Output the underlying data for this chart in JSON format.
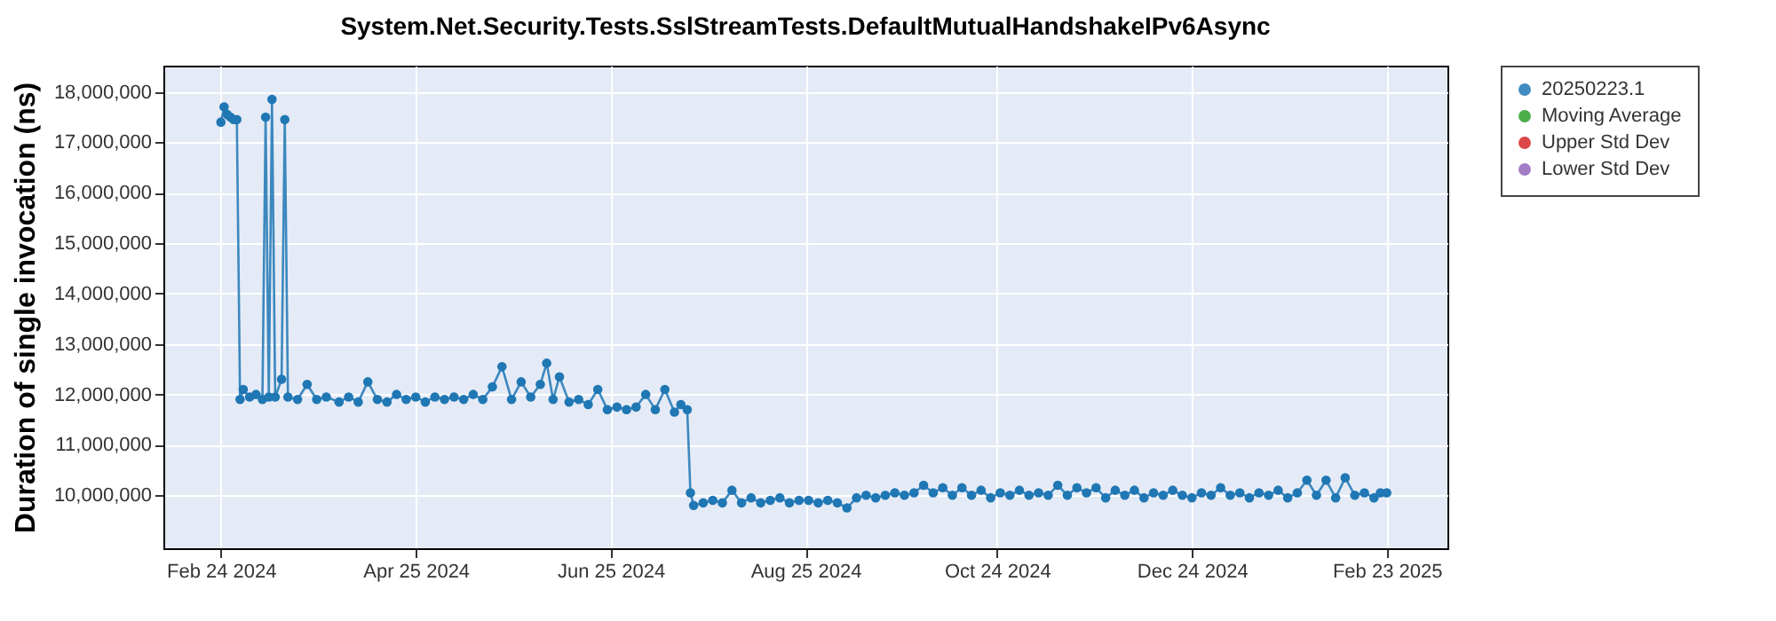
{
  "chart_data": {
    "type": "line",
    "title": "System.Net.Security.Tests.SslStreamTests.DefaultMutualHandshakeIPv6Async",
    "ylabel": "Duration of single invocation (ns)",
    "x": [
      "2024-02-24",
      "2024-02-25",
      "2024-02-26",
      "2024-02-27",
      "2024-02-28",
      "2024-02-29",
      "2024-03-01",
      "2024-03-02",
      "2024-03-04",
      "2024-03-06",
      "2024-03-08",
      "2024-03-09",
      "2024-03-10",
      "2024-03-11",
      "2024-03-12",
      "2024-03-14",
      "2024-03-15",
      "2024-03-16",
      "2024-03-19",
      "2024-03-22",
      "2024-03-25",
      "2024-03-28",
      "2024-04-01",
      "2024-04-04",
      "2024-04-07",
      "2024-04-10",
      "2024-04-13",
      "2024-04-16",
      "2024-04-19",
      "2024-04-22",
      "2024-04-25",
      "2024-04-28",
      "2024-05-01",
      "2024-05-04",
      "2024-05-07",
      "2024-05-10",
      "2024-05-13",
      "2024-05-16",
      "2024-05-19",
      "2024-05-22",
      "2024-05-25",
      "2024-05-28",
      "2024-05-31",
      "2024-06-03",
      "2024-06-05",
      "2024-06-07",
      "2024-06-09",
      "2024-06-12",
      "2024-06-15",
      "2024-06-18",
      "2024-06-21",
      "2024-06-24",
      "2024-06-27",
      "2024-06-30",
      "2024-07-03",
      "2024-07-06",
      "2024-07-09",
      "2024-07-12",
      "2024-07-15",
      "2024-07-17",
      "2024-07-19",
      "2024-07-20",
      "2024-07-21",
      "2024-07-24",
      "2024-07-27",
      "2024-07-30",
      "2024-08-02",
      "2024-08-05",
      "2024-08-08",
      "2024-08-11",
      "2024-08-14",
      "2024-08-17",
      "2024-08-20",
      "2024-08-23",
      "2024-08-26",
      "2024-08-29",
      "2024-09-01",
      "2024-09-04",
      "2024-09-07",
      "2024-09-10",
      "2024-09-13",
      "2024-09-16",
      "2024-09-19",
      "2024-09-22",
      "2024-09-25",
      "2024-09-28",
      "2024-10-01",
      "2024-10-04",
      "2024-10-07",
      "2024-10-10",
      "2024-10-13",
      "2024-10-16",
      "2024-10-19",
      "2024-10-22",
      "2024-10-25",
      "2024-10-28",
      "2024-10-31",
      "2024-11-03",
      "2024-11-06",
      "2024-11-09",
      "2024-11-12",
      "2024-11-15",
      "2024-11-18",
      "2024-11-21",
      "2024-11-24",
      "2024-11-27",
      "2024-11-30",
      "2024-12-03",
      "2024-12-06",
      "2024-12-09",
      "2024-12-12",
      "2024-12-15",
      "2024-12-18",
      "2024-12-21",
      "2024-12-24",
      "2024-12-27",
      "2024-12-30",
      "2025-01-02",
      "2025-01-05",
      "2025-01-08",
      "2025-01-11",
      "2025-01-14",
      "2025-01-17",
      "2025-01-20",
      "2025-01-23",
      "2025-01-26",
      "2025-01-29",
      "2025-02-01",
      "2025-02-04",
      "2025-02-07",
      "2025-02-10",
      "2025-02-13",
      "2025-02-16",
      "2025-02-19",
      "2025-02-21",
      "2025-02-23"
    ],
    "series": [
      {
        "name": "20250223.1",
        "color": "#1f77b4",
        "values": [
          17400000,
          17700000,
          17550000,
          17500000,
          17450000,
          17450000,
          11900000,
          12100000,
          11950000,
          12000000,
          11900000,
          17500000,
          11950000,
          17850000,
          11950000,
          12300000,
          17450000,
          11950000,
          11900000,
          12200000,
          11900000,
          11950000,
          11850000,
          11950000,
          11850000,
          12250000,
          11900000,
          11850000,
          12000000,
          11900000,
          11950000,
          11850000,
          11950000,
          11900000,
          11950000,
          11900000,
          12000000,
          11900000,
          12150000,
          12550000,
          11900000,
          12250000,
          11950000,
          12200000,
          12620000,
          11900000,
          12350000,
          11850000,
          11900000,
          11800000,
          12100000,
          11700000,
          11750000,
          11700000,
          11750000,
          12000000,
          11700000,
          12100000,
          11650000,
          11800000,
          11700000,
          10050000,
          9800000,
          9850000,
          9900000,
          9850000,
          10100000,
          9850000,
          9950000,
          9850000,
          9900000,
          9950000,
          9850000,
          9900000,
          9900000,
          9850000,
          9900000,
          9850000,
          9750000,
          9950000,
          10000000,
          9950000,
          10000000,
          10050000,
          10000000,
          10050000,
          10200000,
          10050000,
          10150000,
          10000000,
          10150000,
          10000000,
          10100000,
          9950000,
          10050000,
          10000000,
          10100000,
          10000000,
          10050000,
          10000000,
          10200000,
          10000000,
          10150000,
          10050000,
          10150000,
          9950000,
          10100000,
          10000000,
          10100000,
          9950000,
          10050000,
          10000000,
          10100000,
          10000000,
          9950000,
          10050000,
          10000000,
          10150000,
          10000000,
          10050000,
          9950000,
          10050000,
          10000000,
          10100000,
          9950000,
          10050000,
          10300000,
          10000000,
          10300000,
          9950000,
          10350000,
          10000000,
          10050000,
          9950000,
          10050000,
          10050000
        ]
      },
      {
        "name": "Moving Average",
        "color": "#2ca02c",
        "values": [
          null,
          null,
          null,
          null,
          null,
          null,
          null,
          null,
          null,
          null,
          null,
          null,
          null,
          null,
          null,
          null,
          null,
          null,
          null,
          null,
          null,
          null,
          null,
          null,
          null,
          null,
          null,
          null,
          null,
          null,
          null,
          null,
          null,
          null,
          null,
          null,
          null,
          null,
          null,
          null,
          null,
          null,
          null,
          null,
          null,
          null,
          null,
          null,
          null,
          null,
          null,
          null,
          null,
          null,
          null,
          null,
          null,
          null,
          null,
          null,
          null,
          null,
          null,
          null,
          null,
          null,
          null,
          null,
          null,
          null,
          null,
          null,
          null,
          null,
          null,
          null,
          null,
          null,
          null,
          null,
          null,
          null,
          null,
          null,
          null,
          null,
          null,
          null,
          null,
          null,
          null,
          null,
          null,
          null,
          null,
          null,
          null,
          null,
          null,
          null,
          null,
          null,
          null,
          null,
          null,
          null,
          null,
          null,
          null,
          null,
          null,
          null,
          null,
          null,
          null,
          null,
          null,
          null,
          null,
          null,
          null,
          null,
          null,
          null,
          null,
          null,
          null,
          null,
          null,
          null,
          null,
          null,
          null,
          null,
          null,
          null
        ]
      },
      {
        "name": "Upper Std Dev",
        "color": "#d62728",
        "values": [
          null,
          null,
          null,
          null,
          null,
          null,
          null,
          null,
          null,
          null,
          null,
          null,
          null,
          null,
          null,
          null,
          null,
          null,
          null,
          null,
          null,
          null,
          null,
          null,
          null,
          null,
          null,
          null,
          null,
          null,
          null,
          null,
          null,
          null,
          null,
          null,
          null,
          null,
          null,
          null,
          null,
          null,
          null,
          null,
          null,
          null,
          null,
          null,
          null,
          null,
          null,
          null,
          null,
          null,
          null,
          null,
          null,
          null,
          null,
          null,
          null,
          null,
          null,
          null,
          null,
          null,
          null,
          null,
          null,
          null,
          null,
          null,
          null,
          null,
          null,
          null,
          null,
          null,
          null,
          null,
          null,
          null,
          null,
          null,
          null,
          null,
          null,
          null,
          null,
          null,
          null,
          null,
          null,
          null,
          null,
          null,
          null,
          null,
          null,
          null,
          null,
          null,
          null,
          null,
          null,
          null,
          null,
          null,
          null,
          null,
          null,
          null,
          null,
          null,
          null,
          null,
          null,
          null,
          null,
          null,
          null,
          null,
          null,
          null,
          null,
          null,
          null,
          null,
          null,
          null,
          null,
          null,
          null,
          null,
          null,
          null
        ]
      },
      {
        "name": "Lower Std Dev",
        "color": "#9467bd",
        "values": [
          null,
          null,
          null,
          null,
          null,
          null,
          null,
          null,
          null,
          null,
          null,
          null,
          null,
          null,
          null,
          null,
          null,
          null,
          null,
          null,
          null,
          null,
          null,
          null,
          null,
          null,
          null,
          null,
          null,
          null,
          null,
          null,
          null,
          null,
          null,
          null,
          null,
          null,
          null,
          null,
          null,
          null,
          null,
          null,
          null,
          null,
          null,
          null,
          null,
          null,
          null,
          null,
          null,
          null,
          null,
          null,
          null,
          null,
          null,
          null,
          null,
          null,
          null,
          null,
          null,
          null,
          null,
          null,
          null,
          null,
          null,
          null,
          null,
          null,
          null,
          null,
          null,
          null,
          null,
          null,
          null,
          null,
          null,
          null,
          null,
          null,
          null,
          null,
          null,
          null,
          null,
          null,
          null,
          null,
          null,
          null,
          null,
          null,
          null,
          null,
          null,
          null,
          null,
          null,
          null,
          null,
          null,
          null,
          null,
          null,
          null,
          null,
          null,
          null,
          null,
          null,
          null,
          null,
          null,
          null,
          null,
          null,
          null,
          null,
          null,
          null,
          null,
          null,
          null,
          null,
          null,
          null,
          null,
          null,
          null,
          null
        ]
      }
    ],
    "xlim": [
      "2024-02-06",
      "2025-03-14"
    ],
    "xticks": [
      {
        "value": "2024-02-24",
        "label": "Feb 24 2024"
      },
      {
        "value": "2024-04-25",
        "label": "Apr 25 2024"
      },
      {
        "value": "2024-06-25",
        "label": "Jun 25 2024"
      },
      {
        "value": "2024-08-25",
        "label": "Aug 25 2024"
      },
      {
        "value": "2024-10-24",
        "label": "Oct 24 2024"
      },
      {
        "value": "2024-12-24",
        "label": "Dec 24 2024"
      },
      {
        "value": "2025-02-23",
        "label": "Feb 23 2025"
      }
    ],
    "ylim": [
      8950000,
      18520000
    ],
    "yticks": [
      {
        "value": 10000000,
        "label": "10,000,000"
      },
      {
        "value": 11000000,
        "label": "11,000,000"
      },
      {
        "value": 12000000,
        "label": "12,000,000"
      },
      {
        "value": 13000000,
        "label": "13,000,000"
      },
      {
        "value": 14000000,
        "label": "14,000,000"
      },
      {
        "value": 15000000,
        "label": "15,000,000"
      },
      {
        "value": 16000000,
        "label": "16,000,000"
      },
      {
        "value": 17000000,
        "label": "17,000,000"
      },
      {
        "value": 18000000,
        "label": "18,000,000"
      }
    ],
    "grid": true,
    "legend": "right",
    "marker": "circle",
    "line_style": "solid"
  }
}
